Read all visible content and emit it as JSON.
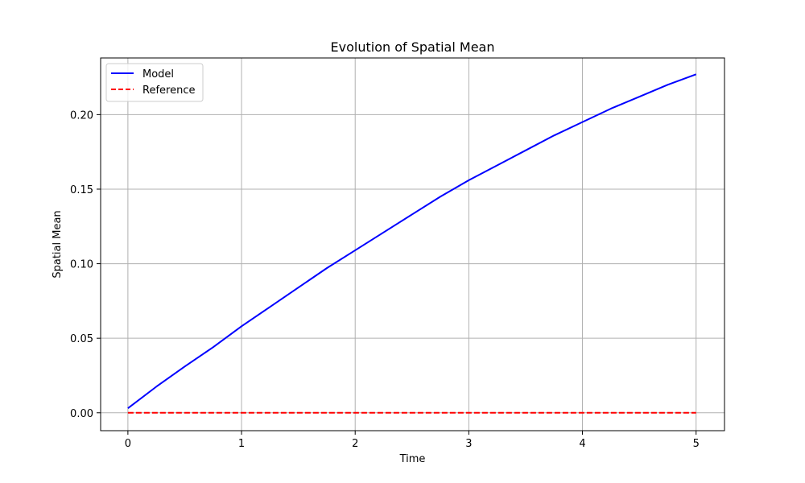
{
  "chart_data": {
    "type": "line",
    "title": "Evolution of Spatial Mean",
    "xlabel": "Time",
    "ylabel": "Spatial Mean",
    "xlim": [
      -0.24,
      5.25
    ],
    "ylim": [
      -0.012,
      0.238
    ],
    "xticks": [
      0,
      1,
      2,
      3,
      4,
      5
    ],
    "xtick_labels": [
      "0",
      "1",
      "2",
      "3",
      "4",
      "5"
    ],
    "yticks": [
      0.0,
      0.05,
      0.1,
      0.15,
      0.2
    ],
    "ytick_labels": [
      "0.00",
      "0.05",
      "0.10",
      "0.15",
      "0.20"
    ],
    "grid": true,
    "legend_position": "upper-left",
    "series": [
      {
        "name": "Model",
        "color": "#0000ff",
        "style": "solid",
        "x": [
          0,
          0.25,
          0.5,
          0.75,
          1.0,
          1.25,
          1.5,
          1.75,
          2.0,
          2.25,
          2.5,
          2.75,
          3.0,
          3.25,
          3.5,
          3.75,
          4.0,
          4.25,
          4.5,
          4.75,
          5.0
        ],
        "y": [
          0.003,
          0.0175,
          0.031,
          0.044,
          0.058,
          0.071,
          0.084,
          0.097,
          0.109,
          0.121,
          0.133,
          0.145,
          0.156,
          0.166,
          0.176,
          0.186,
          0.195,
          0.204,
          0.212,
          0.22,
          0.227
        ]
      },
      {
        "name": "Reference",
        "color": "#ff0000",
        "style": "dashed",
        "x": [
          0,
          5.0
        ],
        "y": [
          0.0,
          0.0
        ]
      }
    ]
  }
}
